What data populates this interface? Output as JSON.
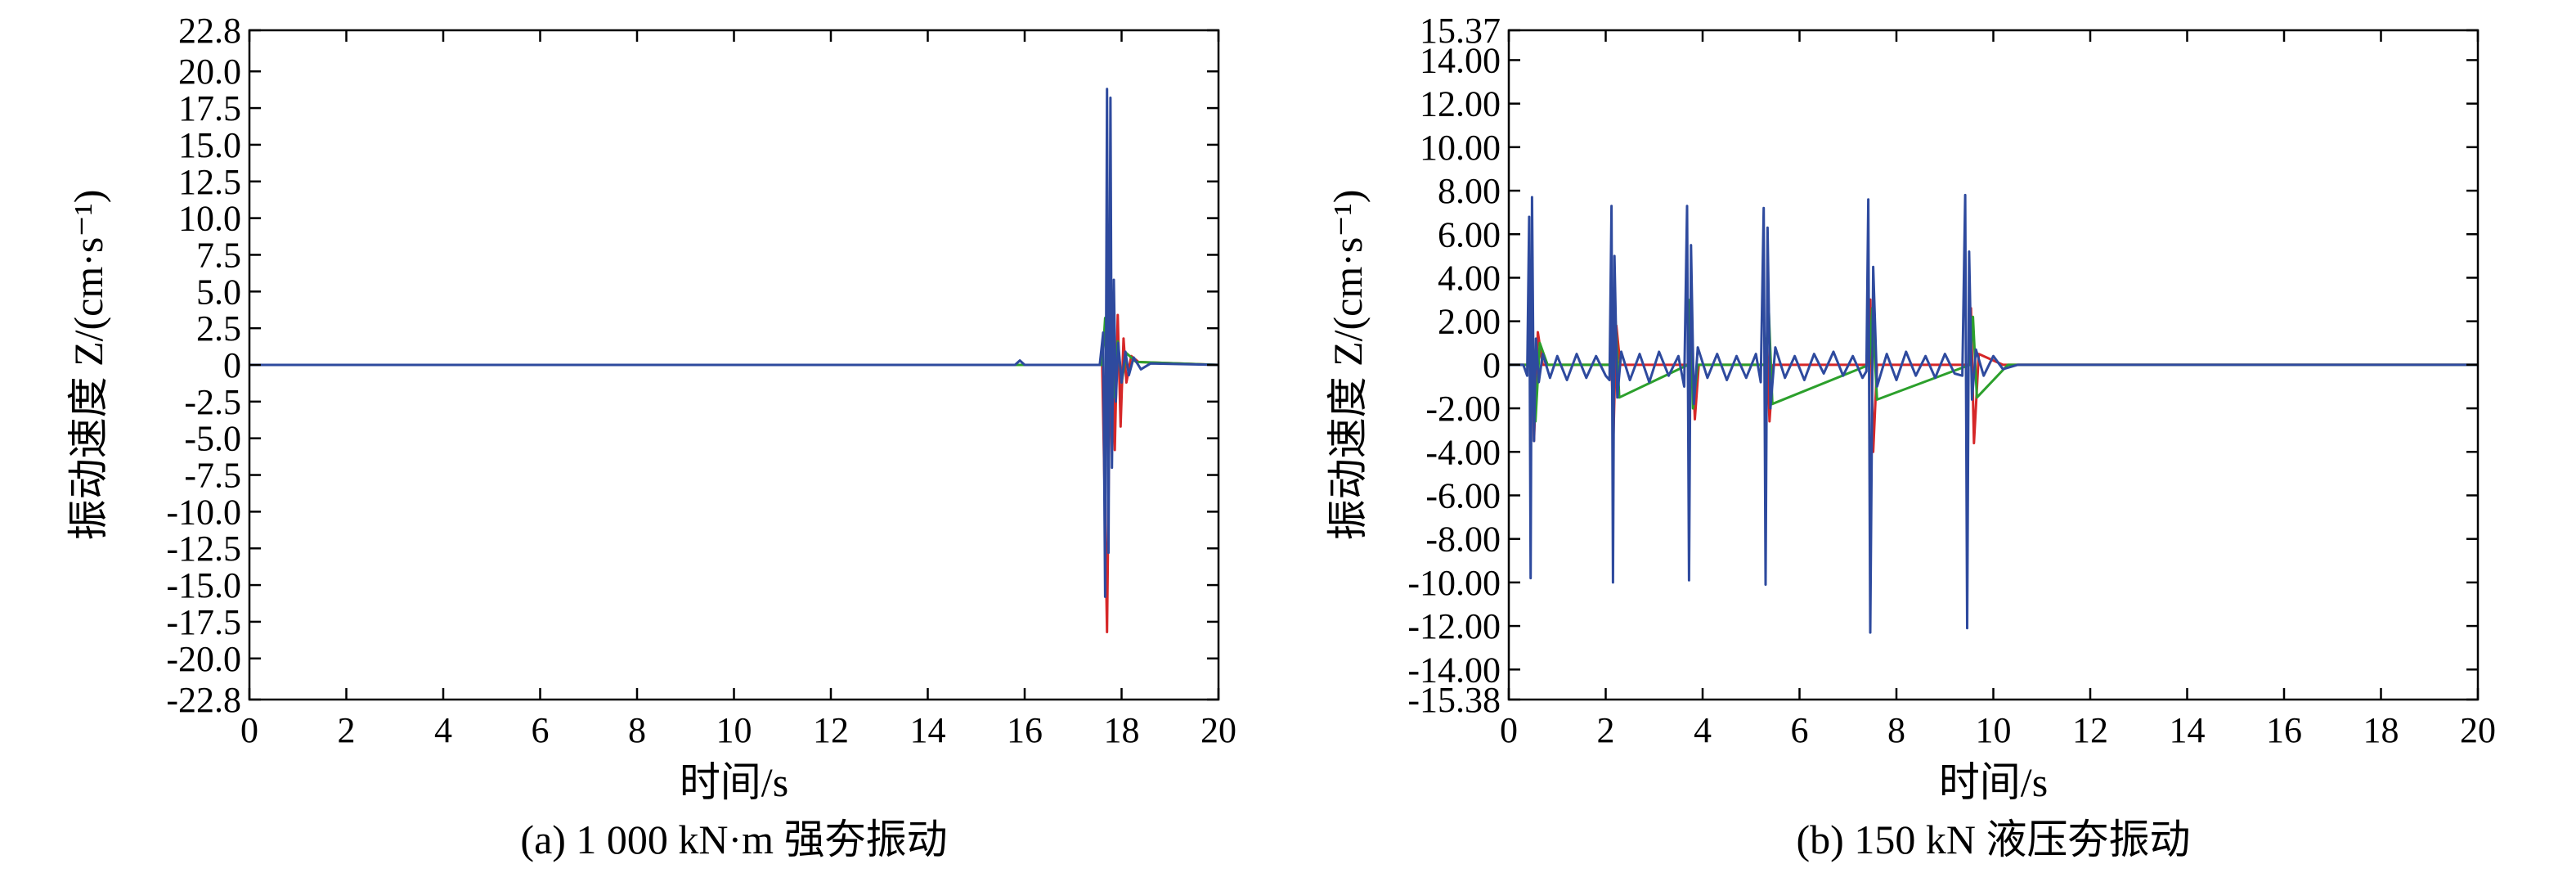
{
  "colors": {
    "blue": "#2e4a9e",
    "red": "#d62728",
    "green": "#2ca02c",
    "purple": "#7b2d8e",
    "axis": "#000000"
  },
  "chart_data": [
    {
      "type": "line",
      "caption": "(a) 1 000 kN·m 强夯振动",
      "xlabel": "时间/s",
      "ylabel": "振动速度 Z/(cm·s⁻¹)",
      "xlim": [
        0,
        20
      ],
      "ylim": [
        -22.8,
        22.8
      ],
      "x_ticks": [
        "0",
        "2",
        "4",
        "6",
        "8",
        "10",
        "12",
        "14",
        "16",
        "18",
        "20"
      ],
      "y_ticks": [
        "22.8",
        "20.0",
        "17.5",
        "15.0",
        "12.5",
        "10.0",
        "7.5",
        "5.0",
        "2.5",
        "0",
        "-2.5",
        "-5.0",
        "-7.5",
        "-10.0",
        "-12.5",
        "-15.0",
        "-17.5",
        "-20.0",
        "-22.8"
      ],
      "y_tick_values": [
        22.8,
        20,
        17.5,
        15,
        12.5,
        10,
        7.5,
        5,
        2.5,
        0,
        -2.5,
        -5,
        -7.5,
        -10,
        -12.5,
        -15,
        -17.5,
        -20,
        -22.8
      ],
      "series": [
        {
          "color": "#d62728",
          "x": [
            0,
            17.6,
            17.66,
            17.7,
            17.74,
            17.8,
            17.86,
            17.92,
            17.98,
            18.04,
            18.1,
            18.2,
            18.35,
            20
          ],
          "y": [
            0,
            0,
            -10.5,
            -18.2,
            -6,
            4.5,
            -5.8,
            3.4,
            -4.2,
            1.8,
            -1.2,
            0.6,
            0.2,
            0
          ]
        },
        {
          "color": "#2ca02c",
          "x": [
            0,
            17.6,
            17.66,
            17.72,
            17.78,
            17.84,
            17.92,
            18.0,
            18.1,
            18.3,
            20
          ],
          "y": [
            0,
            0,
            3.2,
            -4,
            2.8,
            -2.2,
            1.6,
            -1.2,
            0.8,
            0.2,
            0
          ]
        },
        {
          "color": "#2e4a9e",
          "x": [
            0,
            15.8,
            15.9,
            16.0,
            17.55,
            17.62,
            17.66,
            17.7,
            17.73,
            17.77,
            17.8,
            17.84,
            17.88,
            17.93,
            18.0,
            18.08,
            18.15,
            18.25,
            18.4,
            18.6,
            20
          ],
          "y": [
            0,
            0,
            0.3,
            0,
            0,
            2.2,
            -15.8,
            18.8,
            -12.8,
            18.2,
            -7,
            5.8,
            -2.5,
            1.5,
            -1.2,
            0.9,
            -0.7,
            0.5,
            -0.3,
            0.1,
            0
          ]
        }
      ]
    },
    {
      "type": "line",
      "caption": "(b) 150 kN 液压夯振动",
      "xlabel": "时间/s",
      "ylabel": "振动速度 Z/(cm·s⁻¹)",
      "xlim": [
        0,
        20
      ],
      "ylim": [
        -15.38,
        15.37
      ],
      "x_ticks": [
        "0",
        "2",
        "4",
        "6",
        "8",
        "10",
        "12",
        "14",
        "16",
        "18",
        "20"
      ],
      "y_ticks": [
        "15.37",
        "14.00",
        "12.00",
        "10.00",
        "8.00",
        "6.00",
        "4.00",
        "2.00",
        "0",
        "-2.00",
        "-4.00",
        "-6.00",
        "-8.00",
        "-10.00",
        "-12.00",
        "-14.00",
        "-15.38"
      ],
      "y_tick_values": [
        15.37,
        14,
        12,
        10,
        8,
        6,
        4,
        2,
        0,
        -2,
        -4,
        -6,
        -8,
        -10,
        -12,
        -14,
        -15.38
      ],
      "series": [
        {
          "color": "#d62728",
          "x": [
            0,
            0.42,
            0.46,
            0.52,
            0.6,
            0.7,
            2.12,
            2.16,
            2.22,
            2.3,
            3.72,
            3.76,
            3.84,
            3.92,
            5.28,
            5.32,
            5.38,
            5.46,
            7.42,
            7.46,
            7.52,
            7.6,
            9.5,
            9.54,
            9.6,
            9.7,
            10.2,
            20
          ],
          "y": [
            0,
            0,
            2.5,
            -3.5,
            1.5,
            0,
            0,
            -3.2,
            1.8,
            0,
            0,
            1.8,
            -2.5,
            0,
            0,
            1.2,
            -2.6,
            0,
            0,
            3,
            -4,
            0,
            0,
            2.6,
            -3.6,
            0.5,
            0,
            0
          ]
        },
        {
          "color": "#2ca02c",
          "x": [
            0,
            0.44,
            0.48,
            0.55,
            0.64,
            0.8,
            2.14,
            2.2,
            2.28,
            3.7,
            3.74,
            3.8,
            3.9,
            5.3,
            5.36,
            5.44,
            7.44,
            7.5,
            7.6,
            9.52,
            9.58,
            9.66,
            10.3,
            20
          ],
          "y": [
            0,
            0,
            2,
            -2.6,
            1,
            0,
            0,
            2.2,
            -1.5,
            0,
            3,
            -2,
            0,
            0,
            2.8,
            -1.8,
            0,
            2.6,
            -1.6,
            0,
            2.2,
            -1.5,
            0,
            0
          ]
        },
        {
          "color": "#2e4a9e",
          "x": [
            0,
            0.3,
            0.38,
            0.42,
            0.45,
            0.48,
            0.52,
            0.56,
            0.62,
            0.7,
            0.85,
            1.0,
            1.2,
            1.4,
            1.6,
            1.8,
            2.0,
            2.08,
            2.12,
            2.15,
            2.18,
            2.24,
            2.32,
            2.5,
            2.7,
            2.9,
            3.1,
            3.3,
            3.5,
            3.62,
            3.68,
            3.72,
            3.76,
            3.82,
            3.9,
            4.1,
            4.3,
            4.5,
            4.7,
            4.9,
            5.1,
            5.2,
            5.26,
            5.3,
            5.34,
            5.4,
            5.5,
            5.7,
            5.9,
            6.1,
            6.3,
            6.5,
            6.7,
            6.9,
            7.1,
            7.3,
            7.38,
            7.42,
            7.46,
            7.52,
            7.6,
            7.8,
            8.0,
            8.2,
            8.4,
            8.6,
            8.8,
            9.0,
            9.2,
            9.36,
            9.42,
            9.46,
            9.5,
            9.56,
            9.64,
            9.8,
            10.0,
            10.2,
            10.5,
            20
          ],
          "y": [
            0,
            0,
            -0.5,
            6.8,
            -9.8,
            7.7,
            -3.5,
            1.2,
            -0.8,
            0.5,
            -0.6,
            0.4,
            -0.7,
            0.5,
            -0.6,
            0.4,
            -0.5,
            -0.7,
            7.3,
            -10,
            5,
            -1.5,
            0.6,
            -0.7,
            0.5,
            -0.8,
            0.6,
            -0.5,
            0.4,
            -1,
            7.3,
            -9.9,
            5.5,
            -1.8,
            0.8,
            -0.6,
            0.5,
            -0.7,
            0.4,
            -0.6,
            0.5,
            -0.8,
            7.2,
            -10.1,
            6.3,
            -2,
            0.8,
            -0.6,
            0.4,
            -0.7,
            0.5,
            -0.4,
            0.6,
            -0.5,
            0.4,
            -0.6,
            -0.3,
            7.6,
            -12.3,
            4.5,
            -1,
            0.5,
            -0.7,
            0.6,
            -0.5,
            0.4,
            -0.6,
            0.5,
            -0.4,
            -0.5,
            7.8,
            -12.1,
            5.2,
            -1.6,
            0.7,
            -0.5,
            0.4,
            -0.2,
            0,
            0
          ]
        }
      ]
    }
  ]
}
